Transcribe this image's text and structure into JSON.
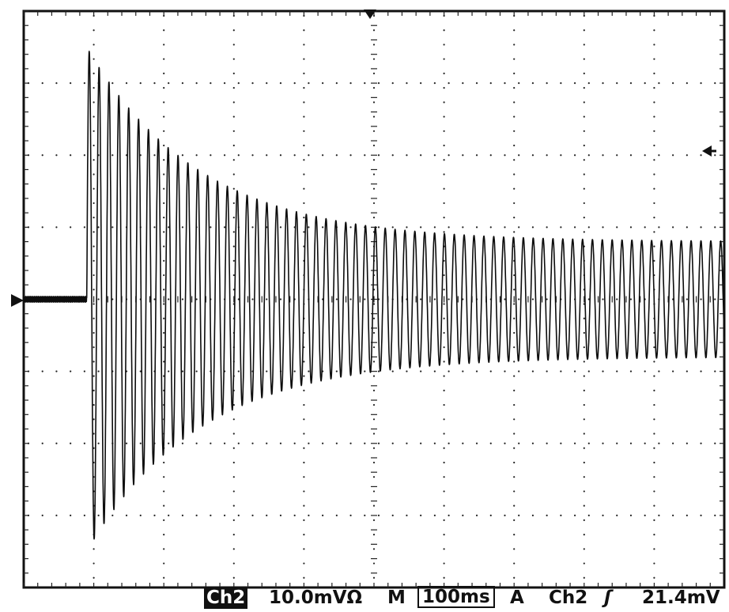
{
  "status_bar": {
    "channel_badge": "Ch2",
    "scale_readout": "10.0mVΩ",
    "timebase_mode": "M",
    "timebase_value": "100ms",
    "trigger_mode": "A",
    "trigger_source": "Ch2",
    "trigger_slope": "ʃ",
    "trigger_level": "21.4mV"
  },
  "chart_data": {
    "type": "line",
    "title": "",
    "xlabel": "",
    "ylabel": "",
    "grid": true,
    "x_divisions": 10,
    "y_divisions": 8,
    "xlim_div": [
      0,
      10
    ],
    "ylim_div": [
      -4,
      4
    ],
    "signal": {
      "baseline_div": 0.0,
      "onset_div": 0.9,
      "cycles_per_div": 7.1,
      "initial_amplitude_div": 3.5,
      "final_amplitude_div": 0.8,
      "decay_div": 1.6
    },
    "trace_color": "#0d0d0d"
  }
}
